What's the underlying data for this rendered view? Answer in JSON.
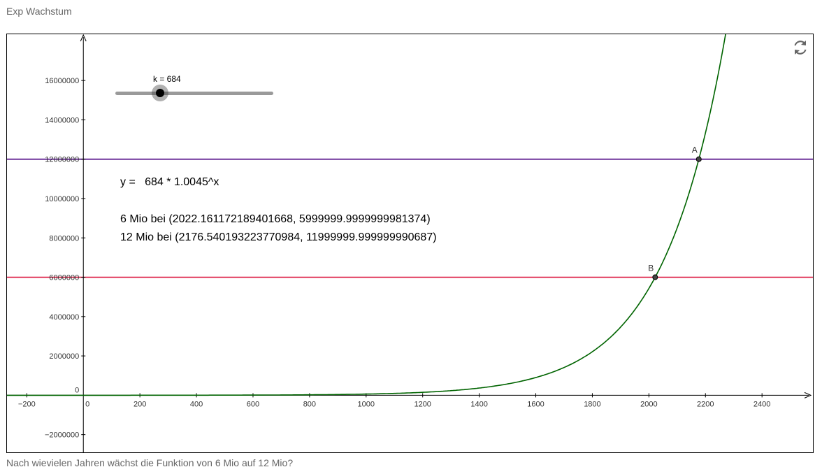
{
  "page": {
    "title": "Exp Wachstum",
    "question": "Nach wievielen Jahren wächst die Funktion von 6 Mio auf 12 Mio?"
  },
  "slider": {
    "label": "k = 684",
    "value": 684,
    "fraction": 0.285
  },
  "texts": {
    "equation": "y =   684 * 1.0045^x",
    "six_mio": "6 Mio bei (2022.161172189401668, 5999999.9999999981374)",
    "twelve_mio": "12 Mio bei (2176.540193223770984, 11999999.999999990687)"
  },
  "toolbar": {
    "reset_icon": "refresh-icon"
  },
  "colors": {
    "curve": "#006400",
    "line_12mio": "#4b0082",
    "line_6mio": "#dc143c",
    "axis": "#000000",
    "slider_track": "#9a9a9a"
  },
  "chart_data": {
    "type": "line",
    "function": {
      "k": 684,
      "base": 1.0045
    },
    "xlim": [
      -270,
      2580
    ],
    "ylim": [
      -2900000,
      18350000
    ],
    "x_ticks": [
      -200,
      0,
      200,
      400,
      600,
      800,
      1000,
      1200,
      1400,
      1600,
      1800,
      2000,
      2200,
      2400
    ],
    "x_tick_labels": [
      "−200",
      "0",
      "200",
      "400",
      "600",
      "800",
      "1000",
      "1200",
      "1400",
      "1600",
      "1800",
      "2000",
      "2200",
      "2400"
    ],
    "y_ticks": [
      -2000000,
      0,
      2000000,
      4000000,
      6000000,
      8000000,
      10000000,
      12000000,
      14000000,
      16000000
    ],
    "y_tick_labels": [
      "−2000000",
      "0",
      "2000000",
      "4000000",
      "6000000",
      "8000000",
      "10000000",
      "12000000",
      "14000000",
      "16000000"
    ],
    "horizontal_lines": [
      {
        "y": 12000000,
        "color": "#4b0082"
      },
      {
        "y": 6000000,
        "color": "#dc143c"
      }
    ],
    "points": [
      {
        "label": "A",
        "x": 2176.54,
        "y": 12000000
      },
      {
        "label": "B",
        "x": 2022.16,
        "y": 6000000
      }
    ]
  }
}
